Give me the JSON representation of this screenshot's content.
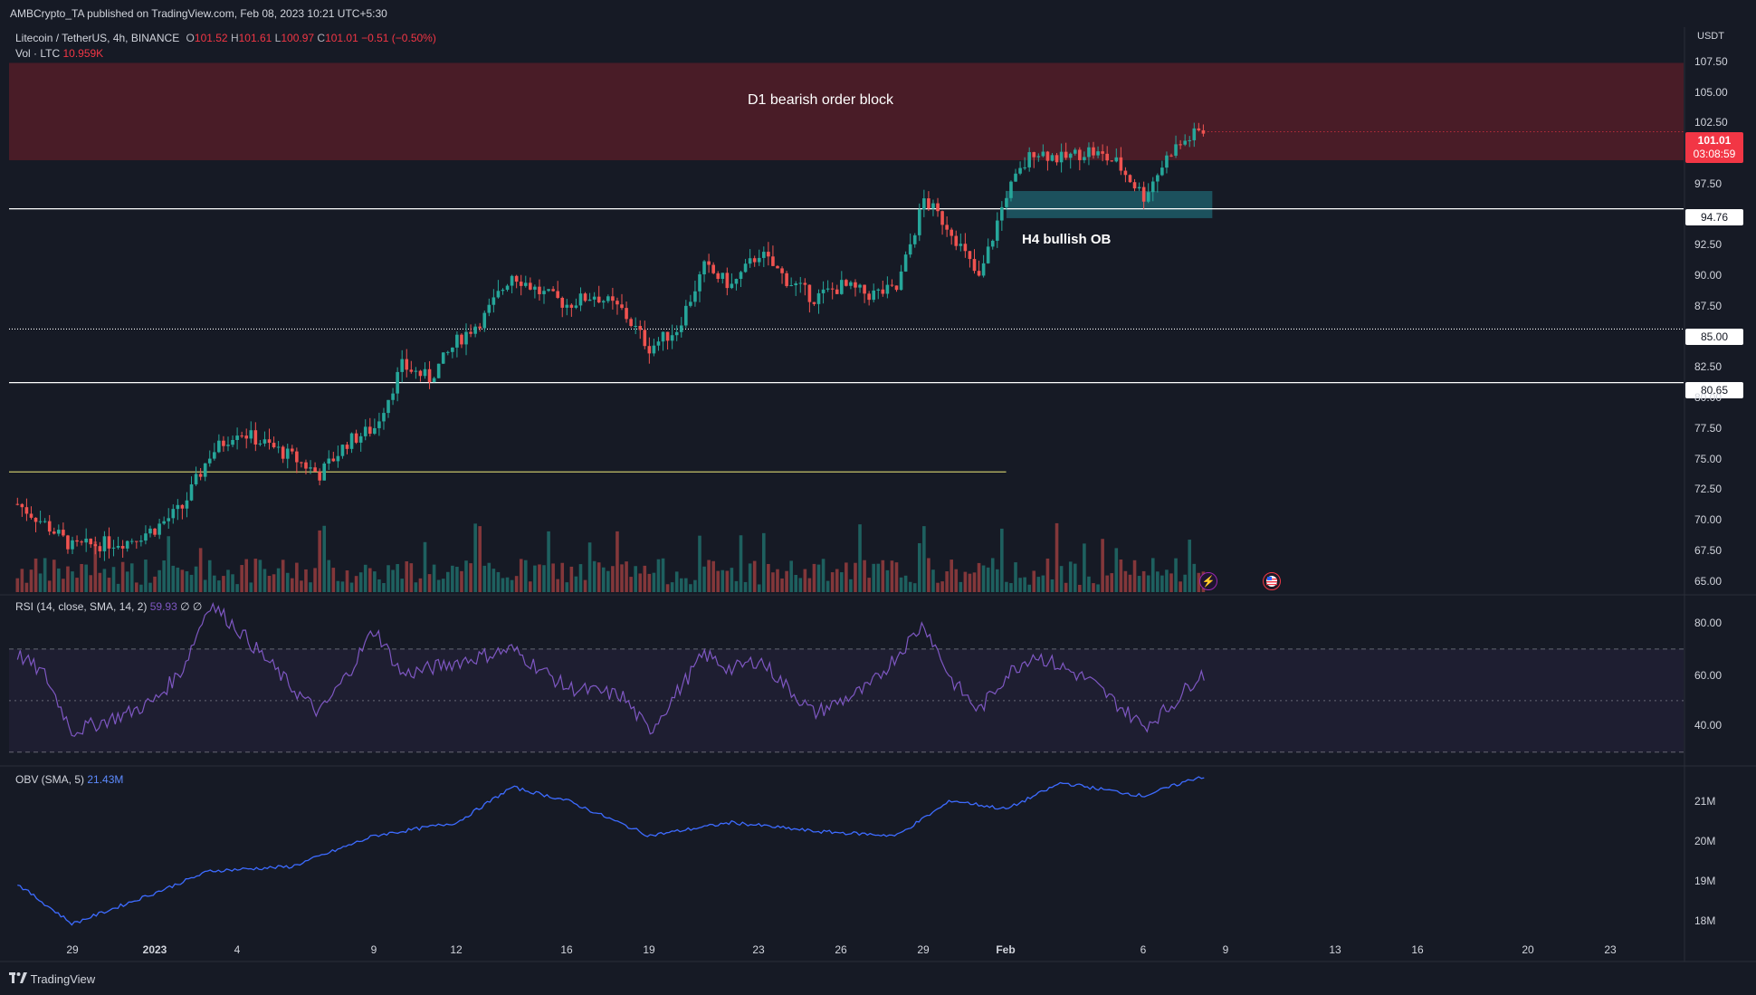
{
  "header": {
    "publisher": "AMBCrypto_TA published on TradingView.com, Feb 08, 2023 10:21 UTC+5:30",
    "symbol": "Litecoin / TetherUS, 4h, BINANCE",
    "o_label": "O",
    "o_value": "101.52",
    "h_label": "H",
    "h_value": "101.61",
    "l_label": "L",
    "l_value": "100.97",
    "c_label": "C",
    "c_value": "101.01",
    "change": "−0.51 (−0.50%)",
    "vol_label": "Vol · LTC",
    "vol_value": "10.959K"
  },
  "rsi_legend": {
    "label": "RSI (14, close, SMA, 14, 2)",
    "value": "59.93",
    "extra": "∅ ∅"
  },
  "obv_legend": {
    "label": "OBV (SMA, 5)",
    "value": "21.43M"
  },
  "footer": {
    "brand": "TradingView"
  },
  "colors": {
    "background": "#161a25",
    "up": "#26a69a",
    "down": "#ef5350",
    "ob_bearish": "#5b1d28",
    "ob_bullish": "#1e5f6b",
    "rsi": "#7e57c2",
    "obv": "#3d6bff",
    "last_price": "#f23645"
  },
  "icons": [
    "lightning-icon",
    "us-flag-icon",
    "tradingview-logo-icon"
  ],
  "chart_data": [
    {
      "type": "candlestick",
      "title": "Litecoin / TetherUS, 4h, BINANCE",
      "currency": "USDT",
      "ylim": [
        63.5,
        109.5
      ],
      "y_ticks": [
        "107.50",
        "105.00",
        "102.50",
        "97.50",
        "92.50",
        "90.00",
        "87.50",
        "82.50",
        "80.00",
        "77.50",
        "75.00",
        "72.50",
        "70.00",
        "67.50",
        "65.00"
      ],
      "x_ticks": [
        "29",
        "2023",
        "4",
        "9",
        "12",
        "16",
        "19",
        "23",
        "26",
        "29",
        "Feb",
        "6",
        "9",
        "13",
        "16",
        "20",
        "23"
      ],
      "x_range": [
        "2022-12-27",
        "2023-02-25"
      ],
      "approx_path": [
        [
          "2022-12-27",
          70.8
        ],
        [
          "2022-12-28",
          69.2
        ],
        [
          "2022-12-29",
          67.3
        ],
        [
          "2022-12-31",
          67.8
        ],
        [
          "2023-01-01",
          68.8
        ],
        [
          "2023-01-02",
          70.5
        ],
        [
          "2023-01-03",
          74.8
        ],
        [
          "2023-01-04",
          76.8
        ],
        [
          "2023-01-06",
          74.6
        ],
        [
          "2023-01-07",
          73.2
        ],
        [
          "2023-01-08",
          75.8
        ],
        [
          "2023-01-09",
          77.0
        ],
        [
          "2023-01-10",
          82.0
        ],
        [
          "2023-01-11",
          81.0
        ],
        [
          "2023-01-12",
          84.0
        ],
        [
          "2023-01-13",
          86.0
        ],
        [
          "2023-01-14",
          89.5
        ],
        [
          "2023-01-15",
          88.0
        ],
        [
          "2023-01-16",
          87.0
        ],
        [
          "2023-01-17",
          87.8
        ],
        [
          "2023-01-18",
          86.5
        ],
        [
          "2023-01-19",
          83.5
        ],
        [
          "2023-01-20",
          85.0
        ],
        [
          "2023-01-21",
          90.0
        ],
        [
          "2023-01-22",
          88.5
        ],
        [
          "2023-01-23",
          91.2
        ],
        [
          "2023-01-24",
          89.0
        ],
        [
          "2023-01-25",
          87.5
        ],
        [
          "2023-01-26",
          88.5
        ],
        [
          "2023-01-27",
          87.8
        ],
        [
          "2023-01-28",
          88.2
        ],
        [
          "2023-01-29",
          95.5
        ],
        [
          "2023-01-30",
          93.0
        ],
        [
          "2023-01-31",
          89.0
        ],
        [
          "2023-02-01",
          96.0
        ],
        [
          "2023-02-02",
          99.5
        ],
        [
          "2023-02-03",
          98.8
        ],
        [
          "2023-02-04",
          99.5
        ],
        [
          "2023-02-05",
          98.5
        ],
        [
          "2023-02-06",
          95.8
        ],
        [
          "2023-02-07",
          99.5
        ],
        [
          "2023-02-08",
          101.01
        ]
      ],
      "last_price": "101.01",
      "countdown": "03:08:59",
      "levels": [
        {
          "price": 94.76,
          "label": "94.76",
          "style": "solid"
        },
        {
          "price": 85.0,
          "label": "85.00",
          "style": "dotted"
        },
        {
          "price": 80.65,
          "label": "80.65",
          "style": "solid"
        },
        {
          "price": 73.4,
          "label": "",
          "style": "solid",
          "color": "#c7c36a"
        }
      ],
      "zones": [
        {
          "name": "D1 bearish order block",
          "label": "D1 bearish order block",
          "y_from": 98.7,
          "y_to": 106.6
        },
        {
          "name": "H4 bullish OB",
          "label": "H4 bullish OB",
          "y_from": 94.0,
          "y_to": 96.2,
          "x_from": "2023-02-01",
          "x_to": "2023-02-08"
        }
      ],
      "volume": {
        "label": "Vol · LTC",
        "last": "10.959K"
      }
    },
    {
      "type": "line",
      "title": "RSI (14, close, SMA, 14, 2)",
      "ylim": [
        25,
        90
      ],
      "y_ticks": [
        "80.00",
        "60.00",
        "40.00"
      ],
      "bands": [
        70,
        50,
        30
      ],
      "approx_path": [
        [
          "2022-12-27",
          68
        ],
        [
          "2022-12-28",
          60
        ],
        [
          "2022-12-29",
          38
        ],
        [
          "2022-12-31",
          45
        ],
        [
          "2023-01-01",
          50
        ],
        [
          "2023-01-02",
          62
        ],
        [
          "2023-01-03",
          88
        ],
        [
          "2023-01-04",
          78
        ],
        [
          "2023-01-06",
          55
        ],
        [
          "2023-01-07",
          45
        ],
        [
          "2023-01-08",
          60
        ],
        [
          "2023-01-09",
          78
        ],
        [
          "2023-01-10",
          60
        ],
        [
          "2023-01-12",
          65
        ],
        [
          "2023-01-14",
          70
        ],
        [
          "2023-01-16",
          55
        ],
        [
          "2023-01-18",
          52
        ],
        [
          "2023-01-19",
          38
        ],
        [
          "2023-01-21",
          68
        ],
        [
          "2023-01-22",
          62
        ],
        [
          "2023-01-23",
          66
        ],
        [
          "2023-01-25",
          45
        ],
        [
          "2023-01-27",
          55
        ],
        [
          "2023-01-29",
          80
        ],
        [
          "2023-01-30",
          58
        ],
        [
          "2023-01-31",
          46
        ],
        [
          "2023-02-01",
          60
        ],
        [
          "2023-02-02",
          68
        ],
        [
          "2023-02-04",
          58
        ],
        [
          "2023-02-06",
          40
        ],
        [
          "2023-02-07",
          48
        ],
        [
          "2023-02-08",
          60
        ]
      ],
      "last": "59.93"
    },
    {
      "type": "line",
      "title": "OBV (SMA, 5)",
      "units": "M",
      "ylim": [
        17.8,
        21.6
      ],
      "y_ticks": [
        "21M",
        "20M",
        "19M",
        "18M"
      ],
      "approx_path": [
        [
          "2022-12-27",
          19.0
        ],
        [
          "2022-12-29",
          18.1
        ],
        [
          "2023-01-01",
          18.8
        ],
        [
          "2023-01-03",
          19.3
        ],
        [
          "2023-01-06",
          19.4
        ],
        [
          "2023-01-09",
          20.1
        ],
        [
          "2023-01-12",
          20.4
        ],
        [
          "2023-01-14",
          21.2
        ],
        [
          "2023-01-16",
          20.9
        ],
        [
          "2023-01-19",
          20.1
        ],
        [
          "2023-01-22",
          20.4
        ],
        [
          "2023-01-25",
          20.2
        ],
        [
          "2023-01-28",
          20.1
        ],
        [
          "2023-01-30",
          20.9
        ],
        [
          "2023-02-01",
          20.7
        ],
        [
          "2023-02-03",
          21.3
        ],
        [
          "2023-02-06",
          21.0
        ],
        [
          "2023-02-08",
          21.43
        ]
      ],
      "last": "21.43M"
    }
  ]
}
